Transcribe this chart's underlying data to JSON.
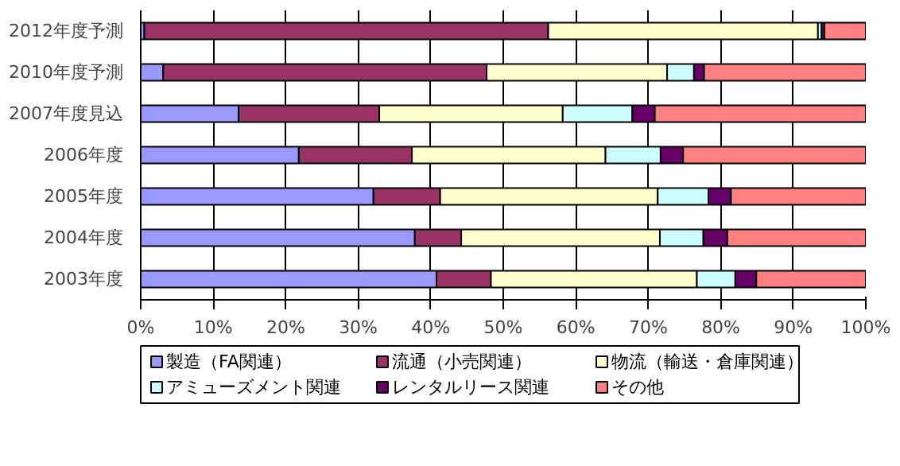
{
  "chart_data": {
    "type": "bar",
    "orientation": "horizontal",
    "stacked": true,
    "categories": [
      "2012年度予測",
      "2010年度予測",
      "2007年度見込",
      "2006年度",
      "2005年度",
      "2004年度",
      "2003年度"
    ],
    "series": [
      {
        "name": "製造（FA関連）",
        "color": "#9999ff",
        "values": [
          0.5,
          3.1,
          13.5,
          21.8,
          32.1,
          37.8,
          40.8
        ]
      },
      {
        "name": "流通（小売関連）",
        "color": "#993366",
        "values": [
          55.7,
          44.6,
          19.4,
          15.6,
          9.2,
          6.4,
          7.5
        ]
      },
      {
        "name": "物流（輸送・倉庫関連）",
        "color": "#ffffcc",
        "values": [
          37.2,
          24.9,
          25.3,
          26.7,
          30.0,
          27.4,
          28.4
        ]
      },
      {
        "name": "アミューズメント関連",
        "color": "#ccffff",
        "values": [
          0.5,
          3.7,
          9.6,
          7.6,
          7.0,
          6.0,
          5.3
        ]
      },
      {
        "name": "レンタルリース関連",
        "color": "#660066",
        "values": [
          0.4,
          1.4,
          3.1,
          3.1,
          3.1,
          3.3,
          2.9
        ]
      },
      {
        "name": "その他",
        "color": "#ff8080",
        "values": [
          5.7,
          22.3,
          29.1,
          25.2,
          18.6,
          19.1,
          15.1
        ]
      }
    ],
    "xlim": [
      0,
      100
    ],
    "xticks": [
      {
        "value": 0,
        "label": "0%"
      },
      {
        "value": 10,
        "label": "10%"
      },
      {
        "value": 20,
        "label": "20%"
      },
      {
        "value": 30,
        "label": "30%"
      },
      {
        "value": 40,
        "label": "40%"
      },
      {
        "value": 50,
        "label": "50%"
      },
      {
        "value": 60,
        "label": "60%"
      },
      {
        "value": 70,
        "label": "70%"
      },
      {
        "value": 80,
        "label": "80%"
      },
      {
        "value": 90,
        "label": "90%"
      },
      {
        "value": 100,
        "label": "100%"
      }
    ],
    "grid": "x",
    "legend": "bottom"
  }
}
